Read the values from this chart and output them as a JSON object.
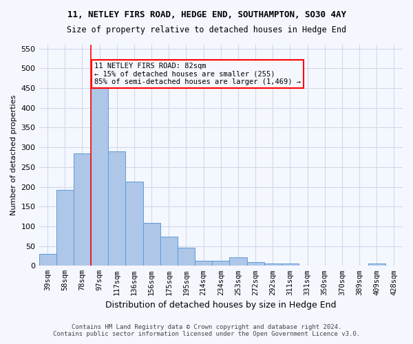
{
  "title": "11, NETLEY FIRS ROAD, HEDGE END, SOUTHAMPTON, SO30 4AY",
  "subtitle": "Size of property relative to detached houses in Hedge End",
  "xlabel": "Distribution of detached houses by size in Hedge End",
  "ylabel": "Number of detached properties",
  "footer_line1": "Contains HM Land Registry data © Crown copyright and database right 2024.",
  "footer_line2": "Contains public sector information licensed under the Open Government Licence v3.0.",
  "categories": [
    "39sqm",
    "58sqm",
    "78sqm",
    "97sqm",
    "117sqm",
    "136sqm",
    "156sqm",
    "175sqm",
    "195sqm",
    "214sqm",
    "234sqm",
    "253sqm",
    "272sqm",
    "292sqm",
    "311sqm",
    "331sqm",
    "350sqm",
    "370sqm",
    "389sqm",
    "409sqm",
    "428sqm"
  ],
  "values": [
    30,
    192,
    285,
    460,
    290,
    213,
    109,
    74,
    46,
    13,
    12,
    21,
    10,
    5,
    5,
    0,
    0,
    0,
    0,
    6,
    0
  ],
  "bar_color": "#aec6e8",
  "bar_edge_color": "#5b9bd5",
  "grid_color": "#d0d8e8",
  "background_color": "#f5f7ff",
  "annotation_text": "11 NETLEY FIRS ROAD: 82sqm\n← 15% of detached houses are smaller (255)\n85% of semi-detached houses are larger (1,469) →",
  "vline_x_index": 2.5,
  "vline_color": "red",
  "annotation_box_color": "red",
  "ylim": [
    0,
    560
  ],
  "yticks": [
    0,
    50,
    100,
    150,
    200,
    250,
    300,
    350,
    400,
    450,
    500,
    550
  ]
}
